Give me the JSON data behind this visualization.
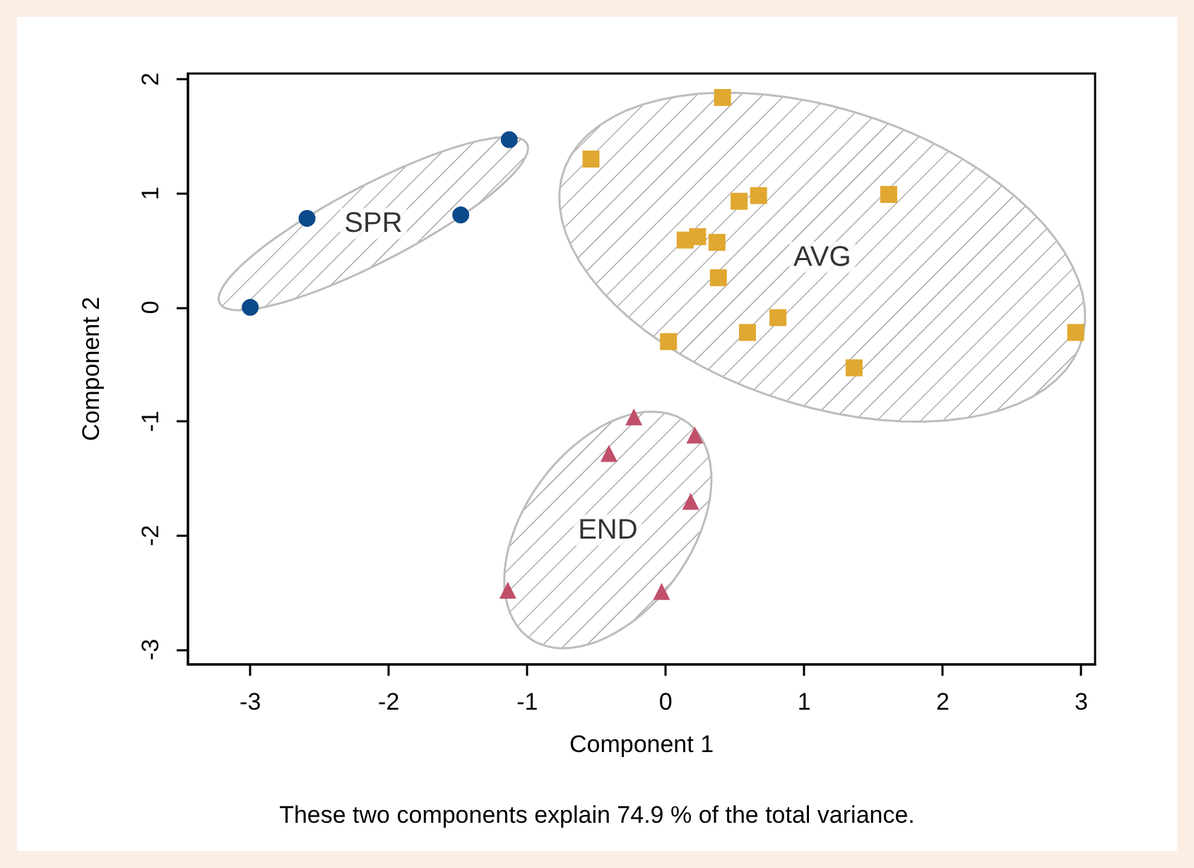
{
  "chart_data": {
    "type": "scatter",
    "xlabel": "Component 1",
    "ylabel": "Component 2",
    "xlim": [
      -3.45,
      3.1
    ],
    "xticks": [
      -3,
      -2,
      -1,
      0,
      1,
      2,
      3
    ],
    "ylim": [
      -3.13,
      2.05
    ],
    "yticks": [
      -3,
      -2,
      -1,
      0,
      1,
      2
    ],
    "grid": false,
    "legend": false,
    "series": [
      {
        "name": "SPR",
        "color": "#0b4a8b",
        "marker": "circle",
        "x": [
          -2.59,
          -3.0,
          -1.48,
          -1.13
        ],
        "values": [
          0.78,
          0.0,
          0.81,
          1.47
        ]
      },
      {
        "name": "AVG",
        "color": "#e0a830",
        "marker": "square",
        "x": [
          0.41,
          -0.54,
          0.53,
          0.67,
          1.61,
          0.14,
          0.23,
          0.37,
          0.38,
          0.81,
          0.59,
          0.02,
          1.36,
          2.96
        ],
        "values": [
          1.84,
          1.3,
          0.93,
          0.98,
          0.99,
          0.59,
          0.62,
          0.57,
          0.26,
          -0.09,
          -0.22,
          -0.3,
          -0.53,
          -0.22
        ]
      },
      {
        "name": "END",
        "color": "#c0506a",
        "marker": "triangle",
        "x": [
          -0.23,
          0.21,
          -0.41,
          0.18,
          -1.14,
          -0.03
        ],
        "values": [
          -0.96,
          -1.12,
          -1.28,
          -1.7,
          -2.48,
          -2.49
        ]
      }
    ],
    "annotations": [
      "These two components explain 74.9 % of the total variance."
    ]
  }
}
